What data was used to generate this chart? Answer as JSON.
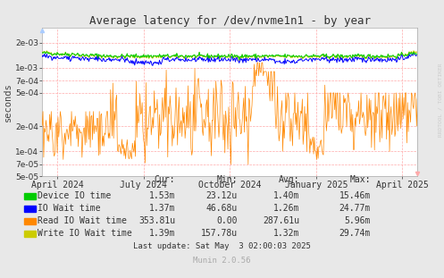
{
  "title": "Average latency for /dev/nvme1n1 - by year",
  "ylabel": "seconds",
  "background_color": "#e8e8e8",
  "plot_bg_color": "#ffffff",
  "grid_color": "#ffaaaa",
  "title_color": "#333333",
  "ylim_log": [
    5e-05,
    0.003
  ],
  "y_ticks": [
    5e-05,
    7e-05,
    0.0001,
    0.0002,
    0.0005,
    0.0007,
    0.001,
    0.002
  ],
  "x_tick_labels": [
    "April 2024",
    "July 2024",
    "October 2024",
    "January 2025",
    "April 2025"
  ],
  "x_tick_positions": [
    0.04,
    0.27,
    0.5,
    0.73,
    0.96
  ],
  "legend": [
    {
      "label": "Device IO time",
      "color": "#00cc00"
    },
    {
      "label": "IO Wait time",
      "color": "#0000ff"
    },
    {
      "label": "Read IO Wait time",
      "color": "#ff8800"
    },
    {
      "label": "Write IO Wait time",
      "color": "#cccc00"
    }
  ],
  "legend_table": {
    "headers": [
      "Cur:",
      "Min:",
      "Avg:",
      "Max:"
    ],
    "rows": [
      [
        "1.53m",
        "23.12u",
        "1.40m",
        "15.46m"
      ],
      [
        "1.37m",
        "46.68u",
        "1.26m",
        "24.77m"
      ],
      [
        "353.81u",
        "0.00",
        "287.61u",
        "5.96m"
      ],
      [
        "1.39m",
        "157.78u",
        "1.32m",
        "29.74m"
      ]
    ]
  },
  "last_update": "Last update: Sat May  3 02:00:03 2025",
  "munin_version": "Munin 2.0.56",
  "rrdtool_label": "RRDTOOL / TOBI OETIKER",
  "line_colors": [
    "#00cc00",
    "#0000ff",
    "#ff8800",
    "#cccc00"
  ],
  "seed": 42
}
